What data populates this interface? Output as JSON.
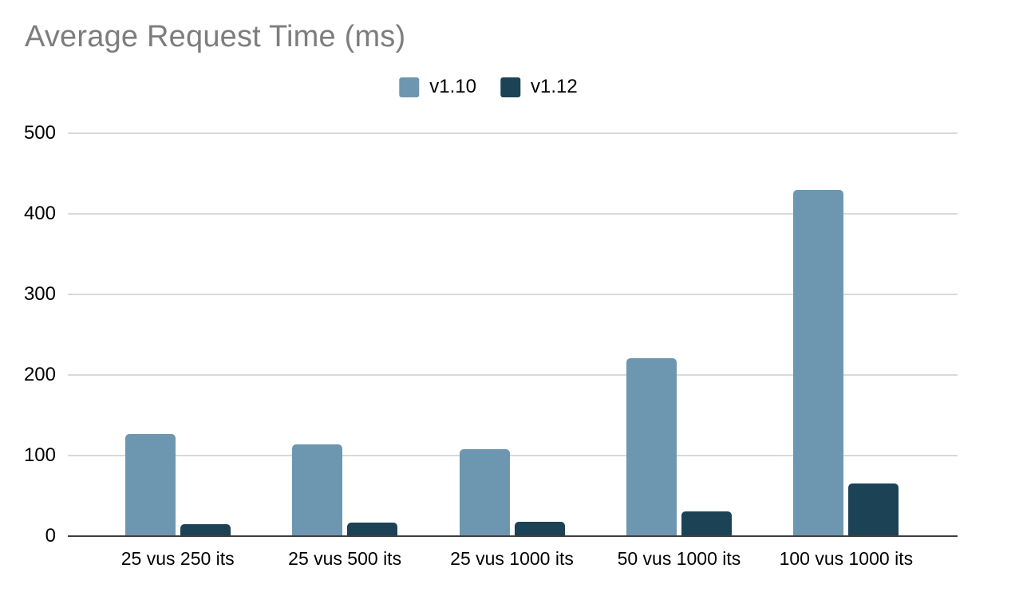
{
  "chart_data": {
    "type": "bar",
    "title": "Average Request Time (ms)",
    "categories": [
      "25 vus 250 its",
      "25 vus 500 its",
      "25 vus 1000 its",
      "50 vus 1000 its",
      "100 vus 1000 its"
    ],
    "series": [
      {
        "name": "v1.10",
        "color": "#6d97b0",
        "values": [
          127,
          114,
          108,
          221,
          430
        ]
      },
      {
        "name": "v1.12",
        "color": "#1c4255",
        "values": [
          15,
          17,
          18,
          31,
          65
        ]
      }
    ],
    "xlabel": "",
    "ylabel": "",
    "ylim": [
      0,
      500
    ],
    "yticks": [
      0,
      100,
      200,
      300,
      400,
      500
    ],
    "grid": true,
    "legend_position": "top-center",
    "colors": {
      "title": "#7d7d7d",
      "gridline": "#d9d9d9",
      "axis": "#3f3f3f",
      "tick_label": "#000000",
      "background": "#ffffff"
    }
  }
}
